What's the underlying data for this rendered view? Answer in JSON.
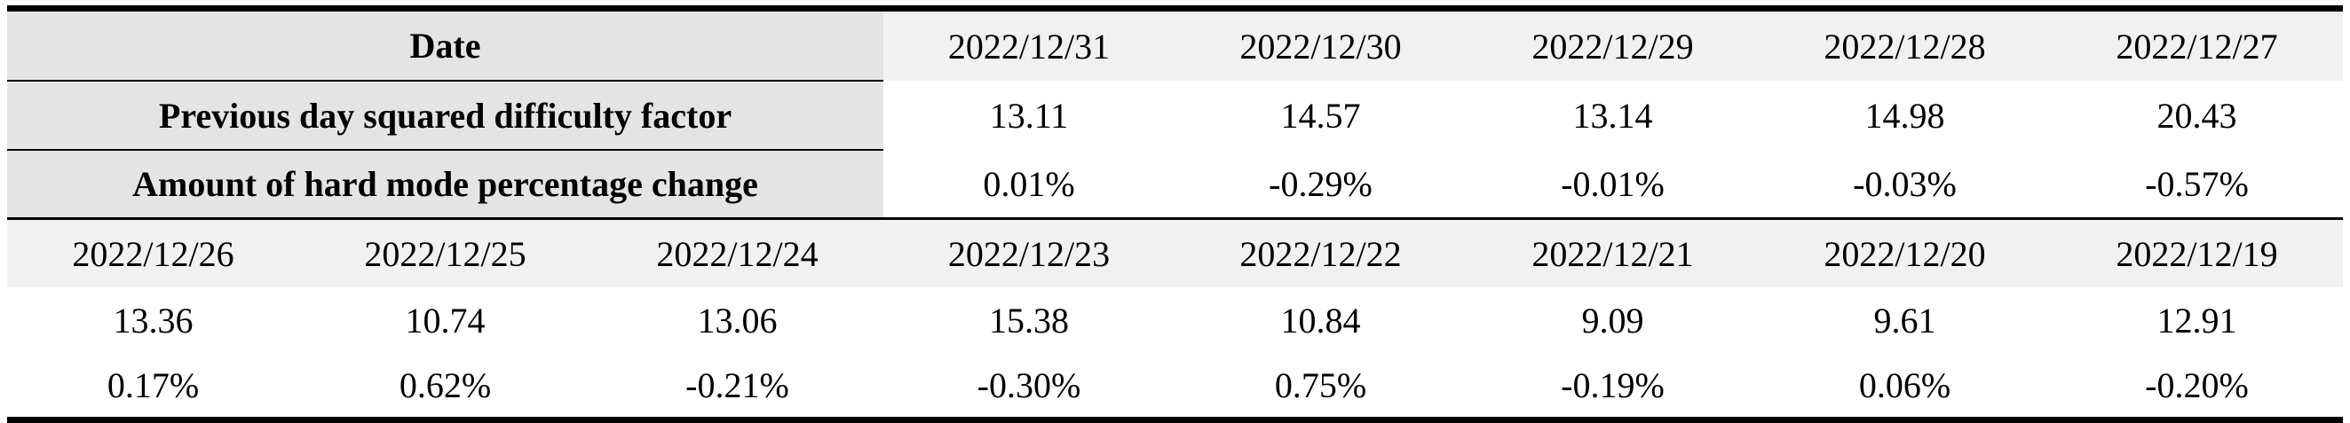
{
  "table": {
    "upper": {
      "labels": {
        "date": "Date",
        "factor": "Previous day squared difficulty factor",
        "change": "Amount of hard mode percentage change"
      },
      "dates": [
        "2022/12/31",
        "2022/12/30",
        "2022/12/29",
        "2022/12/28",
        "2022/12/27"
      ],
      "factors": [
        "13.11",
        "14.57",
        "13.14",
        "14.98",
        "20.43"
      ],
      "changes": [
        "0.01%",
        "-0.29%",
        "-0.01%",
        "-0.03%",
        "-0.57%"
      ]
    },
    "lower": {
      "dates": [
        "2022/12/26",
        "2022/12/25",
        "2022/12/24",
        "2022/12/23",
        "2022/12/22",
        "2022/12/21",
        "2022/12/20",
        "2022/12/19"
      ],
      "factors": [
        "13.36",
        "10.74",
        "13.06",
        "15.38",
        "10.84",
        "9.09",
        "9.61",
        "12.91"
      ],
      "changes": [
        "0.17%",
        "0.62%",
        "-0.21%",
        "-0.30%",
        "0.75%",
        "-0.19%",
        "0.06%",
        "-0.20%"
      ]
    }
  }
}
